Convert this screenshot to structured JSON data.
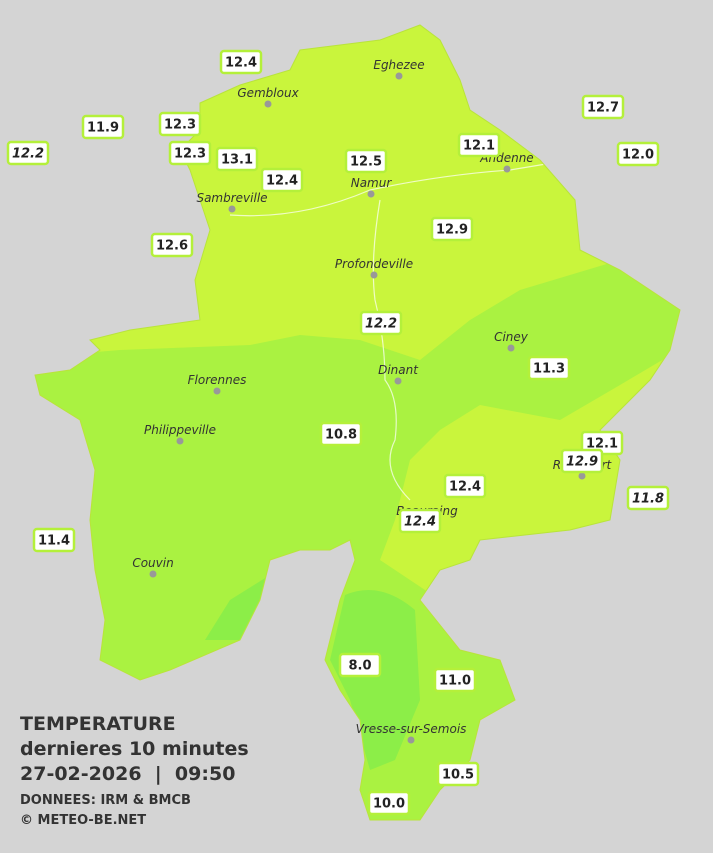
{
  "title": {
    "heading": "TEMPERATURE",
    "subtitle": "dernieres 10 minutes",
    "timestamp": "27-02-2026  |  09:50",
    "source": "DONNEES: IRM & BMCB",
    "credit": "© METEO-BE.NET"
  },
  "cities": [
    "Eghezee",
    "Gembloux",
    "Andenne",
    "Namur",
    "Sambreville",
    "Profondeville",
    "Ciney",
    "Dinant",
    "Florennes",
    "Philippeville",
    "Rochefort",
    "Beauraing",
    "Couvin",
    "Vresse-sur-Semois"
  ],
  "readings": [
    "12.4",
    "11.9",
    "12.3",
    "12.2",
    "12.3",
    "13.1",
    "12.4",
    "12.5",
    "12.1",
    "12.7",
    "12.0",
    "12.6",
    "12.9",
    "12.2",
    "11.3",
    "10.8",
    "12.1",
    "12.9",
    "12.4",
    "12.4",
    "11.8",
    "11.4",
    "8.0",
    "11.0",
    "10.5",
    "10.0"
  ]
}
